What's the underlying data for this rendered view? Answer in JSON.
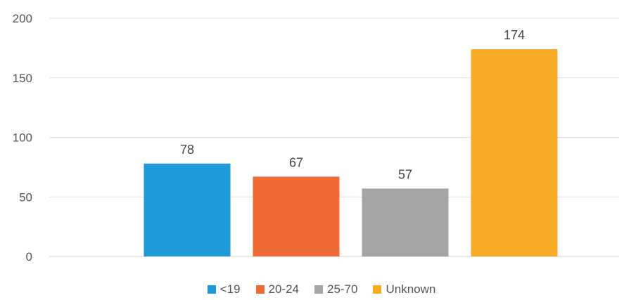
{
  "chart_data": {
    "type": "bar",
    "categories": [
      "<19",
      "20-24",
      "25-70",
      "Unknown"
    ],
    "values": [
      78,
      67,
      57,
      174
    ],
    "colors": [
      "#1e9ad6",
      "#ef6a35",
      "#a5a5a5",
      "#f9ab26"
    ],
    "ylim": [
      0,
      200
    ],
    "yticks": [
      0,
      50,
      100,
      150,
      200
    ],
    "grid": true,
    "legend_position": "bottom",
    "data_labels": true
  }
}
